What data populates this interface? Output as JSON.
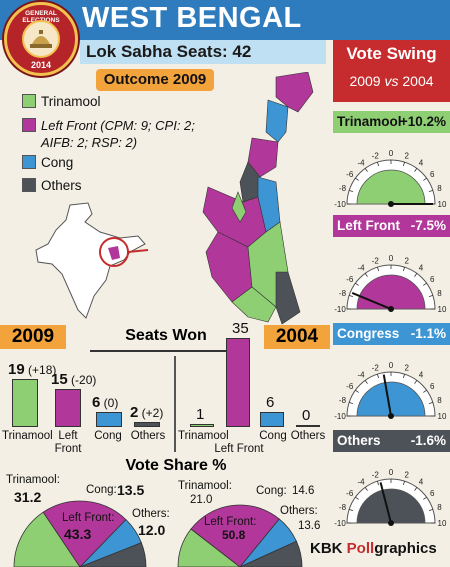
{
  "header": {
    "title": "WEST BENGAL",
    "seats": "Lok Sabha Seats: 42",
    "badge_top": "GENERAL ELECTIONS",
    "badge_year": "2014"
  },
  "colors": {
    "trinamool": "#8fcf73",
    "left_front": "#b2379a",
    "cong": "#3d95d3",
    "others": "#4d5258",
    "header": "#2e7cbe",
    "vote_swing": "#c62b2d",
    "year": "#f3a33b"
  },
  "map": {
    "outcome": "Outcome 2009",
    "legend": [
      {
        "label": "Trinamool",
        "key": "trinamool"
      },
      {
        "label": "Left Front (CPM: 9; CPI: 2;",
        "key": "left_front",
        "extra": "AIFB: 2; RSP: 2)"
      },
      {
        "label": "Cong",
        "key": "cong"
      },
      {
        "label": "Others",
        "key": "others"
      }
    ]
  },
  "swing": {
    "title": "Vote Swing",
    "subtitle_a": "2009",
    "subtitle_vs": "vs",
    "subtitle_b": "2004",
    "items": [
      {
        "party": "Trinamool",
        "value": "+10.2%",
        "num": 10.2
      },
      {
        "party": "Left Front",
        "value": "-7.5%",
        "num": -7.5
      },
      {
        "party": "Congress",
        "value": "-1.1%",
        "num": -1.1
      },
      {
        "party": "Others",
        "value": "-1.6%",
        "num": -1.6
      }
    ],
    "ticks": [
      "-10",
      "-8",
      "-6",
      "-4",
      "-2",
      "0",
      "2",
      "4",
      "6",
      "8",
      "10"
    ]
  },
  "seats": {
    "title": "Seats Won",
    "y2009": "2009",
    "y2004": "2004",
    "s2009": [
      {
        "party": "Trinamool",
        "value": 19,
        "change": "(+18)"
      },
      {
        "party": "Left Front",
        "value": 15,
        "change": "(-20)"
      },
      {
        "party": "Cong",
        "value": 6,
        "change": "(0)"
      },
      {
        "party": "Others",
        "value": 2,
        "change": "(+2)"
      }
    ],
    "s2004": [
      {
        "party": "Trinamool",
        "value": 1
      },
      {
        "party": "Left Front",
        "value": 35
      },
      {
        "party": "Cong",
        "value": 6
      },
      {
        "party": "Others",
        "value": 0
      }
    ],
    "cat_left": "Left",
    "cat_front": "Front"
  },
  "vote_share": {
    "title": "Vote Share %",
    "y2009": [
      {
        "party": "Trinamool:",
        "value": "31.2",
        "num": 31.2
      },
      {
        "party": "Left Front:",
        "value": "43.3",
        "num": 43.3
      },
      {
        "party": "Cong:",
        "value": "13.5",
        "num": 13.5
      },
      {
        "party": "Others:",
        "value": "12.0",
        "num": 12.0
      }
    ],
    "y2004": [
      {
        "party": "Trinamool:",
        "value": "21.0",
        "num": 21.0
      },
      {
        "party": "Left Front:",
        "value": "50.8",
        "num": 50.8
      },
      {
        "party": "Cong:",
        "value": "14.6",
        "num": 14.6
      },
      {
        "party": "Others:",
        "value": "13.6",
        "num": 13.6
      }
    ]
  },
  "credit": {
    "a": "KBK ",
    "b": "Poll",
    "c": "graphics"
  }
}
